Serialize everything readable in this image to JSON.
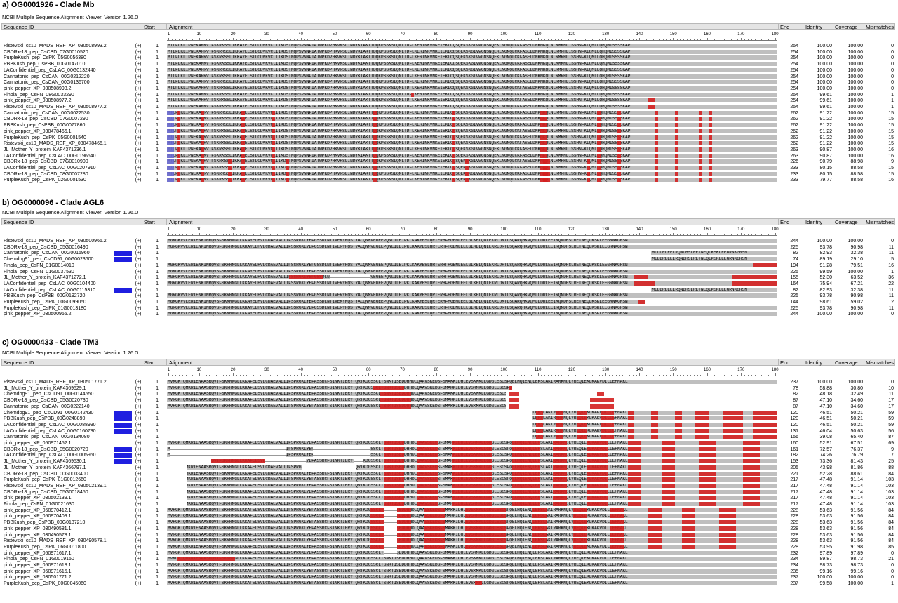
{
  "colors": {
    "mismatch": "#d42020",
    "insert": "#6a6ad0",
    "aligned": "#bfbfbf",
    "flag": "#1f1fe0",
    "header_bg": "#e4e4e4"
  },
  "columns": [
    "Sequence ID",
    "Start",
    "Alignment",
    "End",
    "Identity",
    "Coverage",
    "Mismatches"
  ],
  "viewer": "NCBI Multiple Sequence Alignment Viewer, Version 1.26.0",
  "ruler_ticks": [
    "1",
    "10",
    "20",
    "30",
    "40",
    "50",
    "60",
    "70",
    "80",
    "90",
    "100",
    "110",
    "120",
    "130",
    "140",
    "150",
    "160",
    "170",
    "180"
  ],
  "seq_text": {
    "a": "MTLFLKLIPNEKARRVTFSKRKSSLIKKAYELSTLCDVKVCLIIKDSTNQPSVNNPIATWPKDPHKVRSLINDYKIAKTTDQKPSSKSLQNLTDFLKERINKVNKEIEKLCQSQEKSKGIVWGNSNQEKLNGNQLCKFASELDNKMKQLNLRMRHLISSHNFKLQMLLQHQMISSSSKAP",
    "b": "MGRGKVVLERIENKINRQVSFSKRRNGLLKKAYELHVLCDAEVALIIFSSRGKLYEFGSSDLNTIVERYRQSTYALQNMVEGEEPQNLILEIPKLKAKYESLQRTERHFHGENLEELGLKELQNLEKRLDRTLSQARQHKVQMLLDRLEEIRQNDHSLRETNEQLKSKLEEGRNKGRSN",
    "b_tail": "MLLDRLEEIRQNDHSLRETNEQLKSKLEEGRNKGRSN",
    "c": "MVRGKTQMKRIENAASRQVTFSKRRNGLLKKAFELSVLCDAEVALIIFSPRGKLYEFASSRCFSINKTIERYTQRTKDGSSCLTSNKTISEDDHHDLQAAVSKEDSFSMAKKIDHLEVSKMKLLGDGLESCSFQELHQIENQLERSLAKIRARKNQLYREQIEKLKAKVDILLEHNAKL"
  },
  "panels": [
    {
      "title": "a) OG0001926 - Clade Mb",
      "rows": [
        {
          "id": "Ristevski_cs10_MADS_REF_XP_030508993.2",
          "strand": "(+)",
          "start": "1",
          "end": "254",
          "identity": "100.00",
          "coverage": "100.00",
          "mismatches": "0"
        },
        {
          "id": "CBDRx-18_pep_CsCBD_07G0010520",
          "strand": "(+)",
          "start": "1",
          "end": "254",
          "identity": "100.00",
          "coverage": "100.00",
          "mismatches": "0"
        },
        {
          "id": "PurpleKush_pep_CsPK_05G0056380",
          "strand": "(+)",
          "start": "1",
          "end": "254",
          "identity": "100.00",
          "coverage": "100.00",
          "mismatches": "0"
        },
        {
          "id": "PBBKush_pep_CsPBB_00G0147010",
          "strand": "(+)",
          "start": "1",
          "end": "254",
          "identity": "100.00",
          "coverage": "100.00",
          "mismatches": "0"
        },
        {
          "id": "LAConfidential_pep_CsLAC_00G0132440",
          "strand": "(+)",
          "start": "1",
          "end": "254",
          "identity": "100.00",
          "coverage": "100.00",
          "mismatches": "0"
        },
        {
          "id": "Cannatonic_pep_CsCAN_00G0212220",
          "strand": "(+)",
          "start": "1",
          "end": "254",
          "identity": "100.00",
          "coverage": "100.00",
          "mismatches": "0"
        },
        {
          "id": "Cannatonic_pep_CsCAN_00G0136700",
          "strand": "(+)",
          "start": "1",
          "end": "254",
          "identity": "100.00",
          "coverage": "100.00",
          "mismatches": "0"
        },
        {
          "id": "pink_pepper_XP_030508993.2",
          "strand": "(+)",
          "start": "1",
          "end": "254",
          "identity": "100.00",
          "coverage": "100.00",
          "mismatches": "0"
        },
        {
          "id": "Finola_pep_CsFN_08G0033290",
          "strand": "(+)",
          "start": "1",
          "end": "254",
          "identity": "99.61",
          "coverage": "100.00",
          "mismatches": "1"
        },
        {
          "id": "pink_pepper_XP_030508977.2",
          "strand": "(+)",
          "start": "1",
          "end": "254",
          "identity": "99.61",
          "coverage": "100.00",
          "mismatches": "1"
        },
        {
          "id": "Ristevski_cs10_MADS_REF_XP_030508977.2",
          "strand": "(+)",
          "start": "1",
          "end": "254",
          "identity": "99.61",
          "coverage": "100.00",
          "mismatches": "1"
        },
        {
          "id": "Cannatonic_pep_CsCAN_00G0022530",
          "strand": "(+)",
          "start": "1",
          "end": "262",
          "identity": "91.22",
          "coverage": "100.00",
          "mismatches": "15"
        },
        {
          "id": "CBDRx-18_pep_CsCBD_07G0007290",
          "strand": "(+)",
          "start": "1",
          "end": "262",
          "identity": "91.22",
          "coverage": "100.00",
          "mismatches": "15"
        },
        {
          "id": "PBBKush_pep_CsPBB_00G0077860",
          "strand": "(+)",
          "start": "1",
          "end": "262",
          "identity": "91.22",
          "coverage": "100.00",
          "mismatches": "15"
        },
        {
          "id": "pink_pepper_XP_030478466.1",
          "strand": "(+)",
          "start": "1",
          "end": "262",
          "identity": "91.22",
          "coverage": "100.00",
          "mismatches": "15"
        },
        {
          "id": "PurpleKush_pep_CsPK_05G0001540",
          "strand": "(+)",
          "start": "1",
          "end": "262",
          "identity": "91.22",
          "coverage": "100.00",
          "mismatches": "15"
        },
        {
          "id": "Ristevski_cs10_MADS_REF_XP_030478466.1",
          "strand": "(+)",
          "start": "1",
          "end": "262",
          "identity": "91.22",
          "coverage": "100.00",
          "mismatches": "15"
        },
        {
          "id": "JL_Mother_Y_protein_KAF4371236.1",
          "strand": "(+)",
          "start": "1",
          "end": "263",
          "identity": "90.87",
          "coverage": "100.00",
          "mismatches": "16"
        },
        {
          "id": "LAConfidential_pep_CsLAC_00G0196640",
          "strand": "(+)",
          "start": "1",
          "end": "263",
          "identity": "90.87",
          "coverage": "100.00",
          "mismatches": "16"
        },
        {
          "id": "CBDRx-18_pep_CsCBD_07G0010900",
          "strand": "(+)",
          "start": "1",
          "end": "226",
          "identity": "90.79",
          "coverage": "88.98",
          "mismatches": "9"
        },
        {
          "id": "LAConfidential_pep_CsLAC_00G0207910",
          "strand": "(+)",
          "start": "1",
          "end": "233",
          "identity": "80.15",
          "coverage": "88.58",
          "mismatches": "15"
        },
        {
          "id": "CBDRx-18_pep_CsCBD_08G0007280",
          "strand": "(+)",
          "start": "1",
          "end": "233",
          "identity": "80.15",
          "coverage": "88.58",
          "mismatches": "15"
        },
        {
          "id": "PurpleKush_pep_CsPK_02G0001530",
          "strand": "(+)",
          "start": "1",
          "end": "233",
          "identity": "79.77",
          "coverage": "88.58",
          "mismatches": "16"
        }
      ]
    },
    {
      "title": "b) OG0000096 - Clade AGL6",
      "rows": [
        {
          "id": "Ristevski_cs10_MADS_REF_XP_030500965.2",
          "strand": "(+)",
          "start": "1",
          "end": "244",
          "identity": "100.00",
          "coverage": "100.00",
          "mismatches": "0"
        },
        {
          "id": "CBDRx-18_pep_CsCBD_05G0016490",
          "strand": "(+)",
          "start": "1",
          "end": "225",
          "identity": "93.78",
          "coverage": "90.98",
          "mismatches": "11"
        },
        {
          "id": "Cannatonic_pep_CsCAN_00G0015960",
          "strand": "(+)",
          "start": "1",
          "end": "82",
          "identity": "82.93",
          "coverage": "32.38",
          "mismatches": "11"
        },
        {
          "id": "Chemdog91_pep_CsCD91_00G0023600",
          "strand": "(+)",
          "start": "1",
          "end": "74",
          "identity": "89.19",
          "coverage": "29.10",
          "mismatches": "5"
        },
        {
          "id": "Finola_pep_CsFN_01G0014010",
          "strand": "(+)",
          "start": "1",
          "end": "194",
          "identity": "91.28",
          "coverage": "79.51",
          "mismatches": "16"
        },
        {
          "id": "Finola_pep_CsFN_01G0037530",
          "strand": "(+)",
          "start": "1",
          "end": "225",
          "identity": "99.59",
          "coverage": "100.00",
          "mismatches": "1"
        },
        {
          "id": "JL_Mother_Y_protein_KAF4371272.1",
          "strand": "(+)",
          "start": "1",
          "end": "155",
          "identity": "52.30",
          "coverage": "63.52",
          "mismatches": "36"
        },
        {
          "id": "LAConfidential_pep_CsLAC_00G0104400",
          "strand": "(+)",
          "start": "1",
          "end": "164",
          "identity": "75.94",
          "coverage": "67.21",
          "mismatches": "22"
        },
        {
          "id": "LAConfidential_pep_CsLAC_00G0115310",
          "strand": "(+)",
          "start": "1",
          "end": "82",
          "identity": "82.93",
          "coverage": "32.38",
          "mismatches": "11"
        },
        {
          "id": "PBBKush_pep_CsPBB_00G0192720",
          "strand": "(+)",
          "start": "1",
          "end": "225",
          "identity": "93.78",
          "coverage": "90.98",
          "mismatches": "11"
        },
        {
          "id": "PurpleKush_pep_CsPK_00G0099050",
          "strand": "(+)",
          "start": "1",
          "end": "144",
          "identity": "98.61",
          "coverage": "59.02",
          "mismatches": "2"
        },
        {
          "id": "PurpleKush_pep_CsPK_01G0013180",
          "strand": "(+)",
          "start": "1",
          "end": "225",
          "identity": "93.78",
          "coverage": "90.98",
          "mismatches": "11"
        },
        {
          "id": "pink_pepper_XP_030500965.2",
          "strand": "(+)",
          "start": "1",
          "end": "244",
          "identity": "100.00",
          "coverage": "100.00",
          "mismatches": "0"
        }
      ]
    },
    {
      "title": "c) OG0000433 - Clade TM3",
      "rows": [
        {
          "id": "Ristevski_cs10_MADS_REF_XP_030501771.2",
          "strand": "(+)",
          "start": "1",
          "end": "237",
          "identity": "100.00",
          "coverage": "100.00",
          "mismatches": "0"
        },
        {
          "id": "JL_Mother_Y_protein_KAF4369529.1",
          "strand": "(+)",
          "start": "1",
          "end": "78",
          "identity": "58.88",
          "coverage": "30.80",
          "mismatches": "10"
        },
        {
          "id": "Chemdog91_pep_CsCD91_00G0144550",
          "strand": "(+)",
          "start": "1",
          "end": "82",
          "identity": "48.18",
          "coverage": "32.49",
          "mismatches": "11"
        },
        {
          "id": "CBDRx-18_pep_CsCBD_05G0020730",
          "strand": "(+)",
          "start": "1",
          "end": "87",
          "identity": "47.10",
          "coverage": "34.60",
          "mismatches": "17"
        },
        {
          "id": "Cannatonic_pep_CsCAN_00G0222140",
          "strand": "(+)",
          "start": "1",
          "end": "87",
          "identity": "47.10",
          "coverage": "34.60",
          "mismatches": "17"
        },
        {
          "id": "Chemdog91_pep_CsCD91_00G0142430",
          "strand": "(+)",
          "start": "1",
          "end": "120",
          "identity": "46.51",
          "coverage": "50.21",
          "mismatches": "59"
        },
        {
          "id": "PBBKush_pep_CsPBB_00G0248890",
          "strand": "(+)",
          "start": "1",
          "end": "120",
          "identity": "46.51",
          "coverage": "50.21",
          "mismatches": "59"
        },
        {
          "id": "LAConfidential_pep_CsLAC_00G0088990",
          "strand": "(+)",
          "start": "1",
          "end": "120",
          "identity": "46.51",
          "coverage": "50.21",
          "mismatches": "59"
        },
        {
          "id": "LAConfidential_pep_CsLAC_00G0160730",
          "strand": "(+)",
          "start": "1",
          "end": "131",
          "identity": "46.04",
          "coverage": "50.63",
          "mismatches": "56"
        },
        {
          "id": "Cannatonic_pep_CsCAN_00G0134080",
          "strand": "(+)",
          "start": "1",
          "end": "156",
          "identity": "39.08",
          "coverage": "65.40",
          "mismatches": "87"
        },
        {
          "id": "pink_pepper_XP_050971452.1",
          "strand": "(+)",
          "start": "1",
          "end": "160",
          "identity": "52.91",
          "coverage": "67.51",
          "mismatches": "69"
        },
        {
          "id": "CBDRx-18_pep_CsCBD_05G0020720",
          "strand": "(+)",
          "start": "1",
          "end": "161",
          "identity": "72.57",
          "coverage": "76.37",
          "mismatches": "9"
        },
        {
          "id": "LAConfidential_pep_CsLAC_00G0005960",
          "strand": "(+)",
          "start": "1",
          "end": "182",
          "identity": "74.26",
          "coverage": "76.79",
          "mismatches": "7"
        },
        {
          "id": "JL_Mother_Y_protein_KAF4369530.1",
          "strand": "(+)",
          "start": "1",
          "end": "153",
          "identity": "73.36",
          "coverage": "81.43",
          "mismatches": "25"
        },
        {
          "id": "JL_Mother_Y_protein_KAF4366797.1",
          "strand": "(+)",
          "start": "1",
          "end": "205",
          "identity": "43.98",
          "coverage": "81.86",
          "mismatches": "88"
        },
        {
          "id": "CBDRx-18_pep_CsCBD_00G0003400",
          "strand": "(+)",
          "start": "1",
          "end": "221",
          "identity": "52.28",
          "coverage": "88.61",
          "mismatches": "84"
        },
        {
          "id": "PurpleKush_pep_CsPK_01G0012660",
          "strand": "(+)",
          "start": "1",
          "end": "217",
          "identity": "47.48",
          "coverage": "91.14",
          "mismatches": "103"
        },
        {
          "id": "Ristevski_cs10_MADS_REF_XP_030502139.1",
          "strand": "(+)",
          "start": "1",
          "end": "217",
          "identity": "47.48",
          "coverage": "91.14",
          "mismatches": "103"
        },
        {
          "id": "CBDRx-18_pep_CsCBD_05G0018450",
          "strand": "(+)",
          "start": "1",
          "end": "217",
          "identity": "47.48",
          "coverage": "91.14",
          "mismatches": "103"
        },
        {
          "id": "pink_pepper_XP_030502139.1",
          "strand": "(+)",
          "start": "1",
          "end": "217",
          "identity": "47.48",
          "coverage": "91.14",
          "mismatches": "103"
        },
        {
          "id": "Finola_pep_CsFN_01G0021630",
          "strand": "(+)",
          "start": "1",
          "end": "217",
          "identity": "47.48",
          "coverage": "91.14",
          "mismatches": "103"
        },
        {
          "id": "pink_pepper_XP_050970412.1",
          "strand": "(+)",
          "start": "1",
          "end": "228",
          "identity": "53.63",
          "coverage": "91.56",
          "mismatches": "84"
        },
        {
          "id": "pink_pepper_XP_050970409.1",
          "strand": "(+)",
          "start": "1",
          "end": "228",
          "identity": "53.63",
          "coverage": "91.56",
          "mismatches": "84"
        },
        {
          "id": "PBBKush_pep_CsPBB_00G0137210",
          "strand": "(+)",
          "start": "1",
          "end": "228",
          "identity": "53.63",
          "coverage": "91.56",
          "mismatches": "84"
        },
        {
          "id": "pink_pepper_XP_030490581.1",
          "strand": "(+)",
          "start": "1",
          "end": "228",
          "identity": "53.63",
          "coverage": "91.56",
          "mismatches": "84"
        },
        {
          "id": "pink_pepper_XP_030490578.1",
          "strand": "(+)",
          "start": "1",
          "end": "228",
          "identity": "53.63",
          "coverage": "91.56",
          "mismatches": "84"
        },
        {
          "id": "Ristevski_cs10_MADS_REF_XP_030490578.1",
          "strand": "(+)",
          "start": "1",
          "end": "228",
          "identity": "53.63",
          "coverage": "91.56",
          "mismatches": "84"
        },
        {
          "id": "PurpleKush_pep_CsPK_06G0011800",
          "strand": "(+)",
          "start": "1",
          "end": "228",
          "identity": "53.95",
          "coverage": "91.98",
          "mismatches": "85"
        },
        {
          "id": "pink_pepper_XP_050971617.1",
          "strand": "(+)",
          "start": "1",
          "end": "232",
          "identity": "97.89",
          "coverage": "97.89",
          "mismatches": "0"
        },
        {
          "id": "Finola_pep_CsFN_01G0019150",
          "strand": "(+)",
          "start": "1",
          "end": "234",
          "identity": "89.87",
          "coverage": "98.73",
          "mismatches": "21"
        },
        {
          "id": "pink_pepper_XP_050971618.1",
          "strand": "(+)",
          "start": "1",
          "end": "234",
          "identity": "98.73",
          "coverage": "98.73",
          "mismatches": "0"
        },
        {
          "id": "pink_pepper_XP_050971615.1",
          "strand": "(+)",
          "start": "1",
          "end": "235",
          "identity": "99.16",
          "coverage": "99.16",
          "mismatches": "0"
        },
        {
          "id": "pink_pepper_XP_030501771.2",
          "strand": "(+)",
          "start": "1",
          "end": "237",
          "identity": "100.00",
          "coverage": "100.00",
          "mismatches": "0"
        },
        {
          "id": "PurpleKush_pep_CsPK_00G0045060",
          "strand": "(+)",
          "start": "1",
          "end": "237",
          "identity": "99.58",
          "coverage": "100.00",
          "mismatches": "1"
        }
      ]
    }
  ]
}
